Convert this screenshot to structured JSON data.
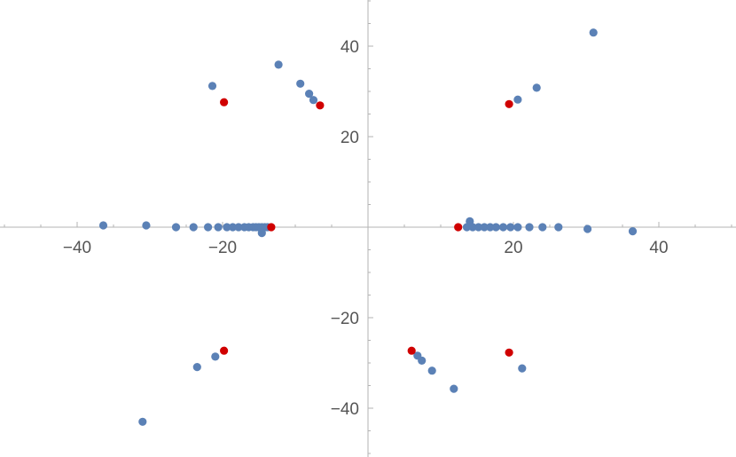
{
  "chart_data": {
    "type": "scatter",
    "title": "",
    "xlabel": "",
    "ylabel": "",
    "xlim": [
      -50,
      50
    ],
    "ylim": [
      -50,
      50
    ],
    "grid": false,
    "x_ticks": [
      -40,
      -20,
      20,
      40
    ],
    "y_ticks": [
      40,
      20,
      -20,
      -40
    ],
    "x_tick_labels": [
      "−40",
      "−20",
      "20",
      "40"
    ],
    "y_tick_labels": [
      "40",
      "20",
      "−20",
      "−40"
    ],
    "series": [
      {
        "color": "#5b81b6",
        "points": [
          [
            -36.4,
            0.4
          ],
          [
            -30.5,
            0.4
          ],
          [
            -26.4,
            0
          ],
          [
            -24,
            0
          ],
          [
            -22,
            0
          ],
          [
            -20.6,
            0
          ],
          [
            -19.4,
            0
          ],
          [
            -18.6,
            0
          ],
          [
            -17.8,
            0
          ],
          [
            -17,
            0
          ],
          [
            -16.4,
            0
          ],
          [
            -15.8,
            0
          ],
          [
            -15.4,
            0
          ],
          [
            -15,
            0
          ],
          [
            -14.6,
            0
          ],
          [
            -14.2,
            0
          ],
          [
            -13.8,
            0
          ],
          [
            -14.6,
            -1.3
          ],
          [
            -21.4,
            31.2
          ],
          [
            -12.3,
            35.9
          ],
          [
            -9.3,
            31.7
          ],
          [
            -8.1,
            29.5
          ],
          [
            -7.5,
            28.1
          ],
          [
            -21,
            -28.6
          ],
          [
            -23.5,
            -30.9
          ],
          [
            -31,
            -43
          ],
          [
            14,
            1.3
          ],
          [
            13.6,
            0
          ],
          [
            14.4,
            0
          ],
          [
            15.2,
            0
          ],
          [
            16,
            0
          ],
          [
            16.8,
            0
          ],
          [
            17.6,
            0
          ],
          [
            18.6,
            0
          ],
          [
            19.6,
            0
          ],
          [
            20.6,
            0
          ],
          [
            22.2,
            0
          ],
          [
            24,
            0
          ],
          [
            26.2,
            0
          ],
          [
            30.2,
            -0.4
          ],
          [
            36.4,
            -0.9
          ],
          [
            20.6,
            28.2
          ],
          [
            23.2,
            30.8
          ],
          [
            31,
            43
          ],
          [
            6.8,
            -28.4
          ],
          [
            7.4,
            -29.5
          ],
          [
            8.8,
            -31.7
          ],
          [
            11.8,
            -35.7
          ],
          [
            21.2,
            -31.2
          ]
        ]
      },
      {
        "color": "#d00000",
        "points": [
          [
            -19.8,
            27.6
          ],
          [
            -6.6,
            26.9
          ],
          [
            -13.3,
            0
          ],
          [
            12.4,
            0
          ],
          [
            19.4,
            27.2
          ],
          [
            -19.8,
            -27.3
          ],
          [
            6,
            -27.3
          ],
          [
            19.4,
            -27.7
          ]
        ]
      }
    ]
  }
}
